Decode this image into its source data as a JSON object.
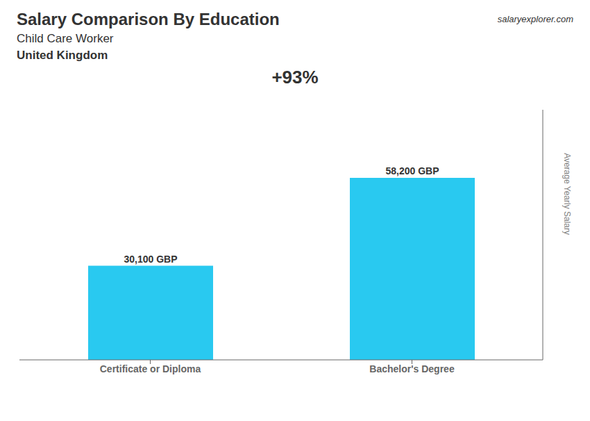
{
  "chart_data": {
    "type": "bar",
    "title": "Salary Comparison By Education",
    "subtitle": [
      "Child Care Worker",
      "United Kingdom"
    ],
    "ylabel": "Average Yearly Salary",
    "annotations": [
      "+93%",
      "salaryexplorer.com"
    ],
    "categories": [
      "Certificate or Diploma",
      "Bachelor's Degree"
    ],
    "values": [
      30100,
      58200
    ],
    "value_labels": [
      "30,100 GBP",
      "58,200 GBP"
    ],
    "color": "#29C9F0",
    "ylim": [
      0,
      80000
    ],
    "yticks": [],
    "tick_labels": "x",
    "data_labels": true,
    "grid": false
  }
}
